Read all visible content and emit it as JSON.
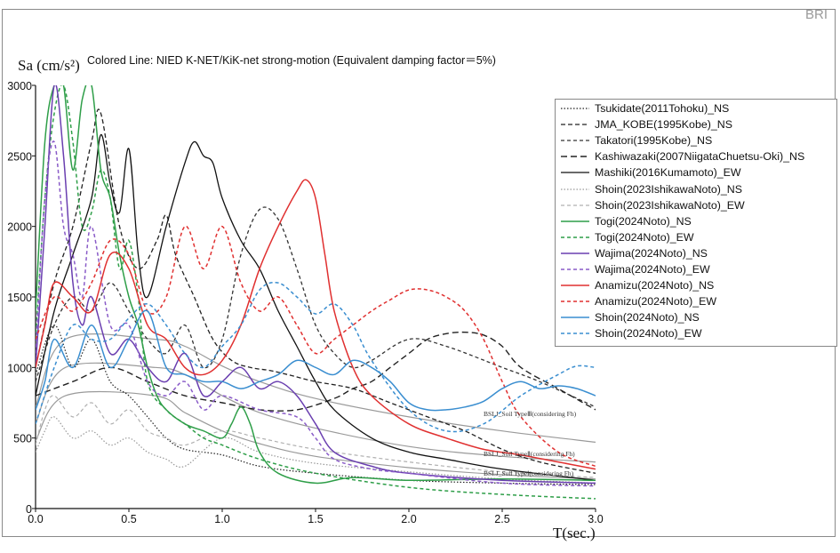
{
  "watermark": "BRI",
  "chart_data": {
    "type": "line",
    "title": "Colored Line: NIED K-NET/KiK-net strong-motion (Equivalent damping factor＝5%)",
    "ylabel": "Sa (cm/s²)",
    "xlabel": "T(sec.)",
    "xlim": [
      0.0,
      3.0
    ],
    "ylim": [
      0,
      3000
    ],
    "xticks": [
      "0.0",
      "0.5",
      "1.0",
      "1.5",
      "2.0",
      "2.5",
      "3.0"
    ],
    "yticks": [
      "0",
      "500",
      "1000",
      "1500",
      "2000",
      "2500",
      "3000"
    ],
    "grid": false,
    "legend_position": "top-right",
    "bslj_labels": [
      "BSLJ_Soil TypeⅢ(considering Fh)",
      "BSLJ_Soil TypeⅡ(considering Fh)",
      "BSLJ_Soil TypeⅠ(considering Fh)"
    ],
    "design_spectra": [
      {
        "name": "BSLJ_Soil TypeⅢ(considering Fh)",
        "x": [
          0,
          0.16,
          0.64,
          0.8,
          1.0,
          1.2,
          1.5,
          2.0,
          2.5,
          3.0
        ],
        "y": [
          720,
          1200,
          1200,
          1150,
          1010,
          900,
          780,
          650,
          550,
          470
        ]
      },
      {
        "name": "BSLJ_Soil TypeⅡ(considering Fh)",
        "x": [
          0,
          0.16,
          0.64,
          0.8,
          1.0,
          1.2,
          1.5,
          2.0,
          2.5,
          3.0
        ],
        "y": [
          600,
          1000,
          1000,
          950,
          800,
          680,
          570,
          440,
          370,
          330
        ]
      },
      {
        "name": "BSLJ_Soil TypeⅠ(considering Fh)",
        "x": [
          0,
          0.16,
          0.64,
          0.8,
          1.0,
          1.2,
          1.5,
          2.0,
          2.5,
          3.0
        ],
        "y": [
          480,
          800,
          800,
          680,
          550,
          460,
          370,
          290,
          240,
          210
        ]
      }
    ],
    "series": [
      {
        "name": "Tsukidate(2011Tohoku)_NS",
        "color": "#222222",
        "dash": "1.5,2",
        "width": 1.2,
        "x": [
          0,
          0.1,
          0.2,
          0.3,
          0.4,
          0.5,
          0.6,
          0.7,
          0.8,
          1.0,
          1.2,
          1.5,
          2.0,
          2.5,
          3.0
        ],
        "y": [
          950,
          1300,
          1000,
          1200,
          900,
          800,
          650,
          500,
          420,
          380,
          300,
          250,
          200,
          180,
          170
        ]
      },
      {
        "name": "JMA_KOBE(1995Kobe)_NS",
        "color": "#222222",
        "dash": "5,3",
        "width": 1.3,
        "x": [
          0,
          0.1,
          0.2,
          0.3,
          0.35,
          0.45,
          0.55,
          0.65,
          0.7,
          0.75,
          0.85,
          0.95,
          1.05,
          1.15,
          1.25,
          1.35,
          1.5,
          1.7,
          1.9,
          2.1,
          2.3,
          2.5,
          2.7,
          3.0
        ],
        "y": [
          1000,
          1600,
          2000,
          2600,
          2800,
          2000,
          1700,
          1900,
          2080,
          1800,
          1500,
          1200,
          1050,
          1000,
          980,
          950,
          900,
          850,
          750,
          650,
          550,
          420,
          330,
          250
        ]
      },
      {
        "name": "Takatori(1995Kobe)_NS",
        "color": "#333333",
        "dash": "4,3",
        "width": 1.3,
        "x": [
          0,
          0.1,
          0.2,
          0.3,
          0.4,
          0.5,
          0.6,
          0.7,
          0.8,
          0.9,
          1.0,
          1.1,
          1.2,
          1.3,
          1.4,
          1.5,
          1.6,
          1.7,
          1.8,
          2.0,
          2.2,
          2.5,
          2.7,
          3.0
        ],
        "y": [
          900,
          1300,
          1500,
          1400,
          1600,
          1400,
          1200,
          1100,
          1300,
          1000,
          1200,
          1800,
          2120,
          2050,
          1700,
          1300,
          1100,
          1000,
          1050,
          1200,
          1150,
          1000,
          900,
          720
        ]
      },
      {
        "name": "Kashiwazaki(2007NiigataChuetsu-Oki)_NS",
        "color": "#222222",
        "dash": "7,4",
        "width": 1.4,
        "x": [
          0,
          0.2,
          0.4,
          0.6,
          0.8,
          1.0,
          1.2,
          1.4,
          1.6,
          1.7,
          1.8,
          1.9,
          2.0,
          2.1,
          2.2,
          2.3,
          2.4,
          2.5,
          2.6,
          2.8,
          3.0
        ],
        "y": [
          800,
          900,
          1000,
          900,
          800,
          750,
          700,
          700,
          780,
          850,
          900,
          1000,
          1100,
          1200,
          1240,
          1250,
          1230,
          1150,
          1000,
          850,
          700
        ]
      },
      {
        "name": "Mashiki(2016Kumamoto)_EW",
        "color": "#111111",
        "dash": "",
        "width": 1.3,
        "x": [
          0,
          0.1,
          0.2,
          0.3,
          0.35,
          0.4,
          0.45,
          0.5,
          0.55,
          0.6,
          0.7,
          0.8,
          0.85,
          0.9,
          0.95,
          1.0,
          1.1,
          1.2,
          1.3,
          1.4,
          1.5,
          1.6,
          1.8,
          2.0,
          2.2,
          2.5,
          3.0
        ],
        "y": [
          800,
          1400,
          1800,
          2200,
          2650,
          2300,
          2100,
          2550,
          1800,
          1500,
          2000,
          2450,
          2600,
          2500,
          2450,
          2200,
          1900,
          1700,
          1400,
          1150,
          900,
          700,
          500,
          400,
          350,
          280,
          200
        ]
      },
      {
        "name": "Shoin(2023IshikawaNoto)_NS",
        "color": "#999999",
        "dash": "1.5,2",
        "width": 1.2,
        "x": [
          0,
          0.05,
          0.1,
          0.2,
          0.3,
          0.4,
          0.5,
          0.6,
          0.7,
          0.8,
          1.0,
          1.2,
          1.5,
          2.0,
          2.5,
          3.0
        ],
        "y": [
          400,
          550,
          650,
          500,
          550,
          450,
          500,
          400,
          350,
          300,
          500,
          400,
          320,
          260,
          210,
          180
        ]
      },
      {
        "name": "Shoin(2023IshikawaNoto)_EW",
        "color": "#b0b0b0",
        "dash": "4,3",
        "width": 1.2,
        "x": [
          0,
          0.05,
          0.1,
          0.2,
          0.3,
          0.4,
          0.5,
          0.6,
          0.7,
          0.8,
          1.0,
          1.2,
          1.5,
          2.0,
          2.5,
          3.0
        ],
        "y": [
          450,
          700,
          800,
          650,
          750,
          600,
          700,
          550,
          500,
          450,
          550,
          500,
          420,
          330,
          260,
          220
        ]
      },
      {
        "name": "Togi(2024Noto)_NS",
        "color": "#2e9e48",
        "dash": "",
        "width": 1.5,
        "x": [
          0,
          0.05,
          0.1,
          0.15,
          0.2,
          0.25,
          0.3,
          0.35,
          0.4,
          0.45,
          0.5,
          0.55,
          0.6,
          0.65,
          0.7,
          0.8,
          0.9,
          1.0,
          1.05,
          1.1,
          1.15,
          1.2,
          1.3,
          1.5,
          1.7,
          2.0,
          2.5,
          3.0
        ],
        "y": [
          1400,
          2600,
          3000,
          3000,
          2400,
          2900,
          3000,
          2400,
          2200,
          1800,
          1500,
          1300,
          1000,
          800,
          700,
          600,
          550,
          500,
          600,
          720,
          600,
          400,
          250,
          180,
          220,
          200,
          210,
          200
        ]
      },
      {
        "name": "Togi(2024Noto)_EW",
        "color": "#2e9e48",
        "dash": "4,3",
        "width": 1.5,
        "x": [
          0,
          0.05,
          0.1,
          0.15,
          0.2,
          0.25,
          0.3,
          0.35,
          0.4,
          0.45,
          0.5,
          0.55,
          0.6,
          0.7,
          0.8,
          0.9,
          1.0,
          1.2,
          1.5,
          2.0,
          2.5,
          3.0
        ],
        "y": [
          1200,
          2200,
          2800,
          3000,
          2600,
          2000,
          2100,
          2400,
          2200,
          1700,
          1900,
          1500,
          900,
          700,
          600,
          500,
          450,
          350,
          250,
          150,
          100,
          70
        ]
      },
      {
        "name": "Wajima(2024Noto)_NS",
        "color": "#6a3fb0",
        "dash": "",
        "width": 1.5,
        "x": [
          0,
          0.05,
          0.1,
          0.15,
          0.2,
          0.25,
          0.3,
          0.4,
          0.5,
          0.6,
          0.7,
          0.8,
          0.9,
          1.0,
          1.1,
          1.2,
          1.3,
          1.4,
          1.5,
          1.6,
          1.8,
          2.0,
          2.5,
          3.0
        ],
        "y": [
          1000,
          2000,
          3000,
          2500,
          1600,
          1300,
          1500,
          1100,
          1200,
          1000,
          900,
          1100,
          800,
          900,
          1000,
          850,
          900,
          800,
          600,
          400,
          300,
          250,
          200,
          180
        ]
      },
      {
        "name": "Wajima(2024Noto)_EW",
        "color": "#8a5cc8",
        "dash": "4,3",
        "width": 1.5,
        "x": [
          0,
          0.05,
          0.1,
          0.15,
          0.2,
          0.25,
          0.3,
          0.4,
          0.5,
          0.6,
          0.7,
          0.8,
          0.9,
          1.0,
          1.2,
          1.4,
          1.5,
          1.6,
          1.8,
          2.0,
          2.5,
          3.0
        ],
        "y": [
          1100,
          2200,
          2600,
          2000,
          1800,
          1500,
          2000,
          1300,
          1300,
          900,
          800,
          900,
          700,
          800,
          700,
          650,
          500,
          350,
          280,
          250,
          180,
          160
        ]
      },
      {
        "name": "Anamizu(2024Noto)_NS",
        "color": "#e03030",
        "dash": "",
        "width": 1.5,
        "x": [
          0,
          0.05,
          0.1,
          0.2,
          0.3,
          0.4,
          0.5,
          0.6,
          0.7,
          0.8,
          0.9,
          1.0,
          1.1,
          1.2,
          1.3,
          1.4,
          1.45,
          1.5,
          1.55,
          1.6,
          1.7,
          1.8,
          2.0,
          2.2,
          2.4,
          2.6,
          2.8,
          3.0
        ],
        "y": [
          1000,
          1300,
          1600,
          1500,
          1400,
          1800,
          1700,
          1300,
          1200,
          1000,
          950,
          1050,
          1300,
          1700,
          2000,
          2250,
          2330,
          2200,
          1800,
          1400,
          1000,
          800,
          600,
          500,
          420,
          380,
          330,
          280
        ]
      },
      {
        "name": "Anamizu(2024Noto)_EW",
        "color": "#e03030",
        "dash": "4,3",
        "width": 1.5,
        "x": [
          0,
          0.1,
          0.2,
          0.3,
          0.4,
          0.5,
          0.6,
          0.7,
          0.8,
          0.9,
          1.0,
          1.1,
          1.2,
          1.3,
          1.4,
          1.5,
          1.6,
          1.7,
          1.8,
          1.9,
          2.0,
          2.1,
          2.2,
          2.3,
          2.4,
          2.5,
          2.6,
          2.8,
          3.0
        ],
        "y": [
          1200,
          1500,
          1400,
          1600,
          1900,
          1800,
          1400,
          1500,
          2000,
          1700,
          2000,
          1600,
          1400,
          1500,
          1300,
          1100,
          1200,
          1300,
          1400,
          1480,
          1550,
          1550,
          1500,
          1400,
          1200,
          900,
          650,
          400,
          300
        ]
      },
      {
        "name": "Shoin(2024Noto)_NS",
        "color": "#3a8ed0",
        "dash": "",
        "width": 1.5,
        "x": [
          0,
          0.05,
          0.1,
          0.2,
          0.3,
          0.4,
          0.5,
          0.6,
          0.7,
          0.8,
          0.9,
          1.0,
          1.1,
          1.2,
          1.3,
          1.4,
          1.5,
          1.6,
          1.7,
          1.8,
          1.9,
          2.0,
          2.1,
          2.2,
          2.3,
          2.4,
          2.5,
          2.6,
          2.7,
          2.8,
          2.9,
          3.0
        ],
        "y": [
          700,
          900,
          1200,
          1000,
          1300,
          1000,
          1200,
          1400,
          1000,
          950,
          900,
          900,
          850,
          900,
          950,
          1050,
          1000,
          950,
          1050,
          1000,
          900,
          750,
          700,
          700,
          720,
          760,
          850,
          900,
          850,
          870,
          850,
          800
        ]
      },
      {
        "name": "Shoin(2024Noto)_EW",
        "color": "#3a8ed0",
        "dash": "4,3",
        "width": 1.5,
        "x": [
          0,
          0.1,
          0.2,
          0.3,
          0.4,
          0.5,
          0.6,
          0.7,
          0.8,
          0.9,
          1.0,
          1.1,
          1.2,
          1.3,
          1.4,
          1.5,
          1.6,
          1.7,
          1.8,
          2.0,
          2.2,
          2.4,
          2.6,
          2.8,
          2.9,
          3.0
        ],
        "y": [
          600,
          1000,
          1300,
          1200,
          1200,
          1350,
          1450,
          1300,
          1100,
          1000,
          1150,
          1300,
          1550,
          1600,
          1500,
          1380,
          1450,
          1300,
          1050,
          700,
          550,
          600,
          800,
          950,
          1010,
          1000
        ]
      }
    ]
  }
}
